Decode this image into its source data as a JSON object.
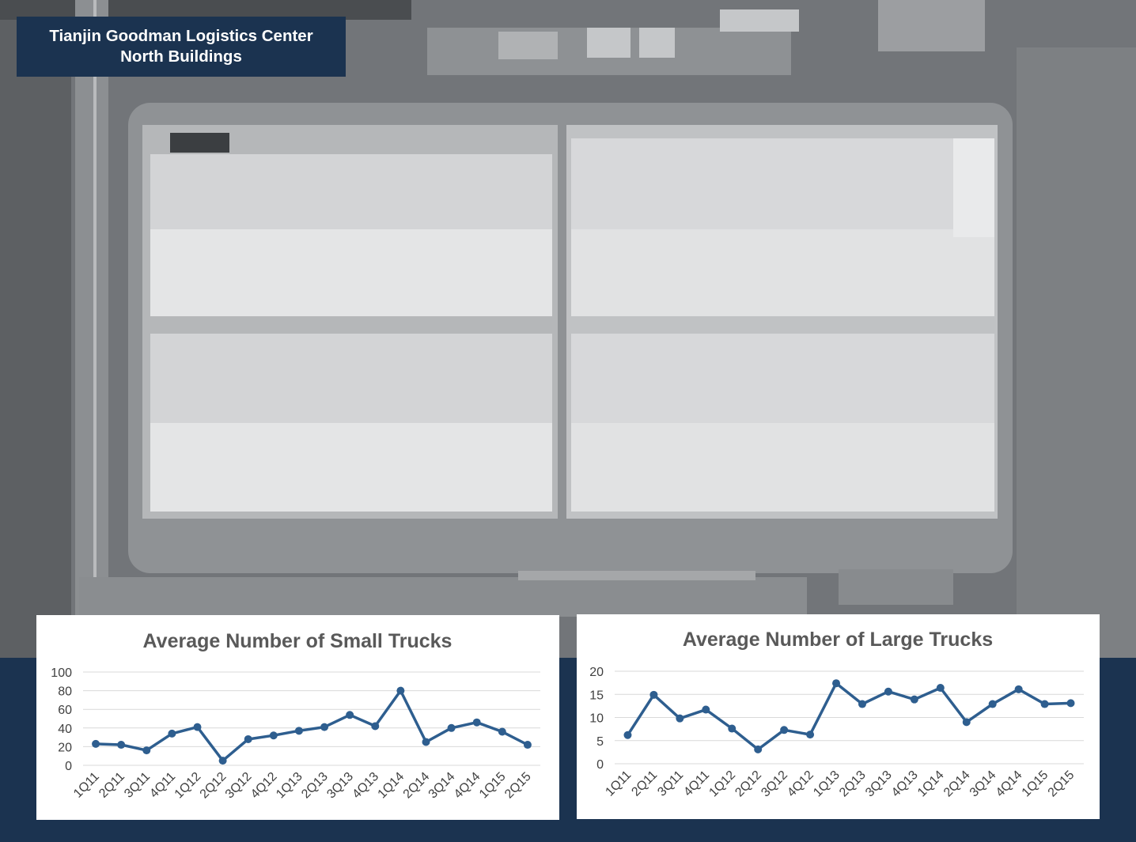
{
  "page": {
    "title_line1": "Tianjin Goodman Logistics Center",
    "title_line2": "North Buildings"
  },
  "colors": {
    "navy": "#1b3350",
    "series": "#2e5e8f",
    "grid": "#d9d9d9",
    "title_text": "#595959"
  },
  "chart_data": [
    {
      "type": "line",
      "title": "Average Number of Small Trucks",
      "xlabel": "",
      "ylabel": "",
      "categories": [
        "1Q11",
        "2Q11",
        "3Q11",
        "4Q11",
        "1Q12",
        "2Q12",
        "3Q12",
        "4Q12",
        "1Q13",
        "2Q13",
        "3Q13",
        "4Q13",
        "1Q14",
        "2Q14",
        "3Q14",
        "4Q14",
        "1Q15",
        "2Q15"
      ],
      "yticks": [
        "0",
        "20",
        "40",
        "60",
        "80",
        "100"
      ],
      "ylim": [
        0,
        100
      ],
      "grid": true,
      "series": [
        {
          "values": [
            23,
            22,
            16,
            34,
            41,
            5,
            28,
            32,
            37,
            41,
            54,
            42,
            80,
            25,
            40,
            46,
            36,
            22
          ]
        }
      ]
    },
    {
      "type": "line",
      "title": "Average Number of Large Trucks",
      "xlabel": "",
      "ylabel": "",
      "categories": [
        "1Q11",
        "2Q11",
        "3Q11",
        "4Q11",
        "1Q12",
        "2Q12",
        "3Q12",
        "4Q12",
        "1Q13",
        "2Q13",
        "3Q13",
        "4Q13",
        "1Q14",
        "2Q14",
        "3Q14",
        "4Q14",
        "1Q15",
        "2Q15"
      ],
      "yticks": [
        "0",
        "5",
        "10",
        "15",
        "20"
      ],
      "ylim": [
        0,
        20
      ],
      "grid": true,
      "series": [
        {
          "values": [
            6.2,
            14.9,
            9.8,
            11.7,
            7.6,
            3.1,
            7.3,
            6.3,
            17.4,
            12.9,
            15.6,
            13.9,
            16.4,
            9.0,
            12.9,
            16.1,
            12.9,
            13.1
          ]
        }
      ]
    }
  ]
}
